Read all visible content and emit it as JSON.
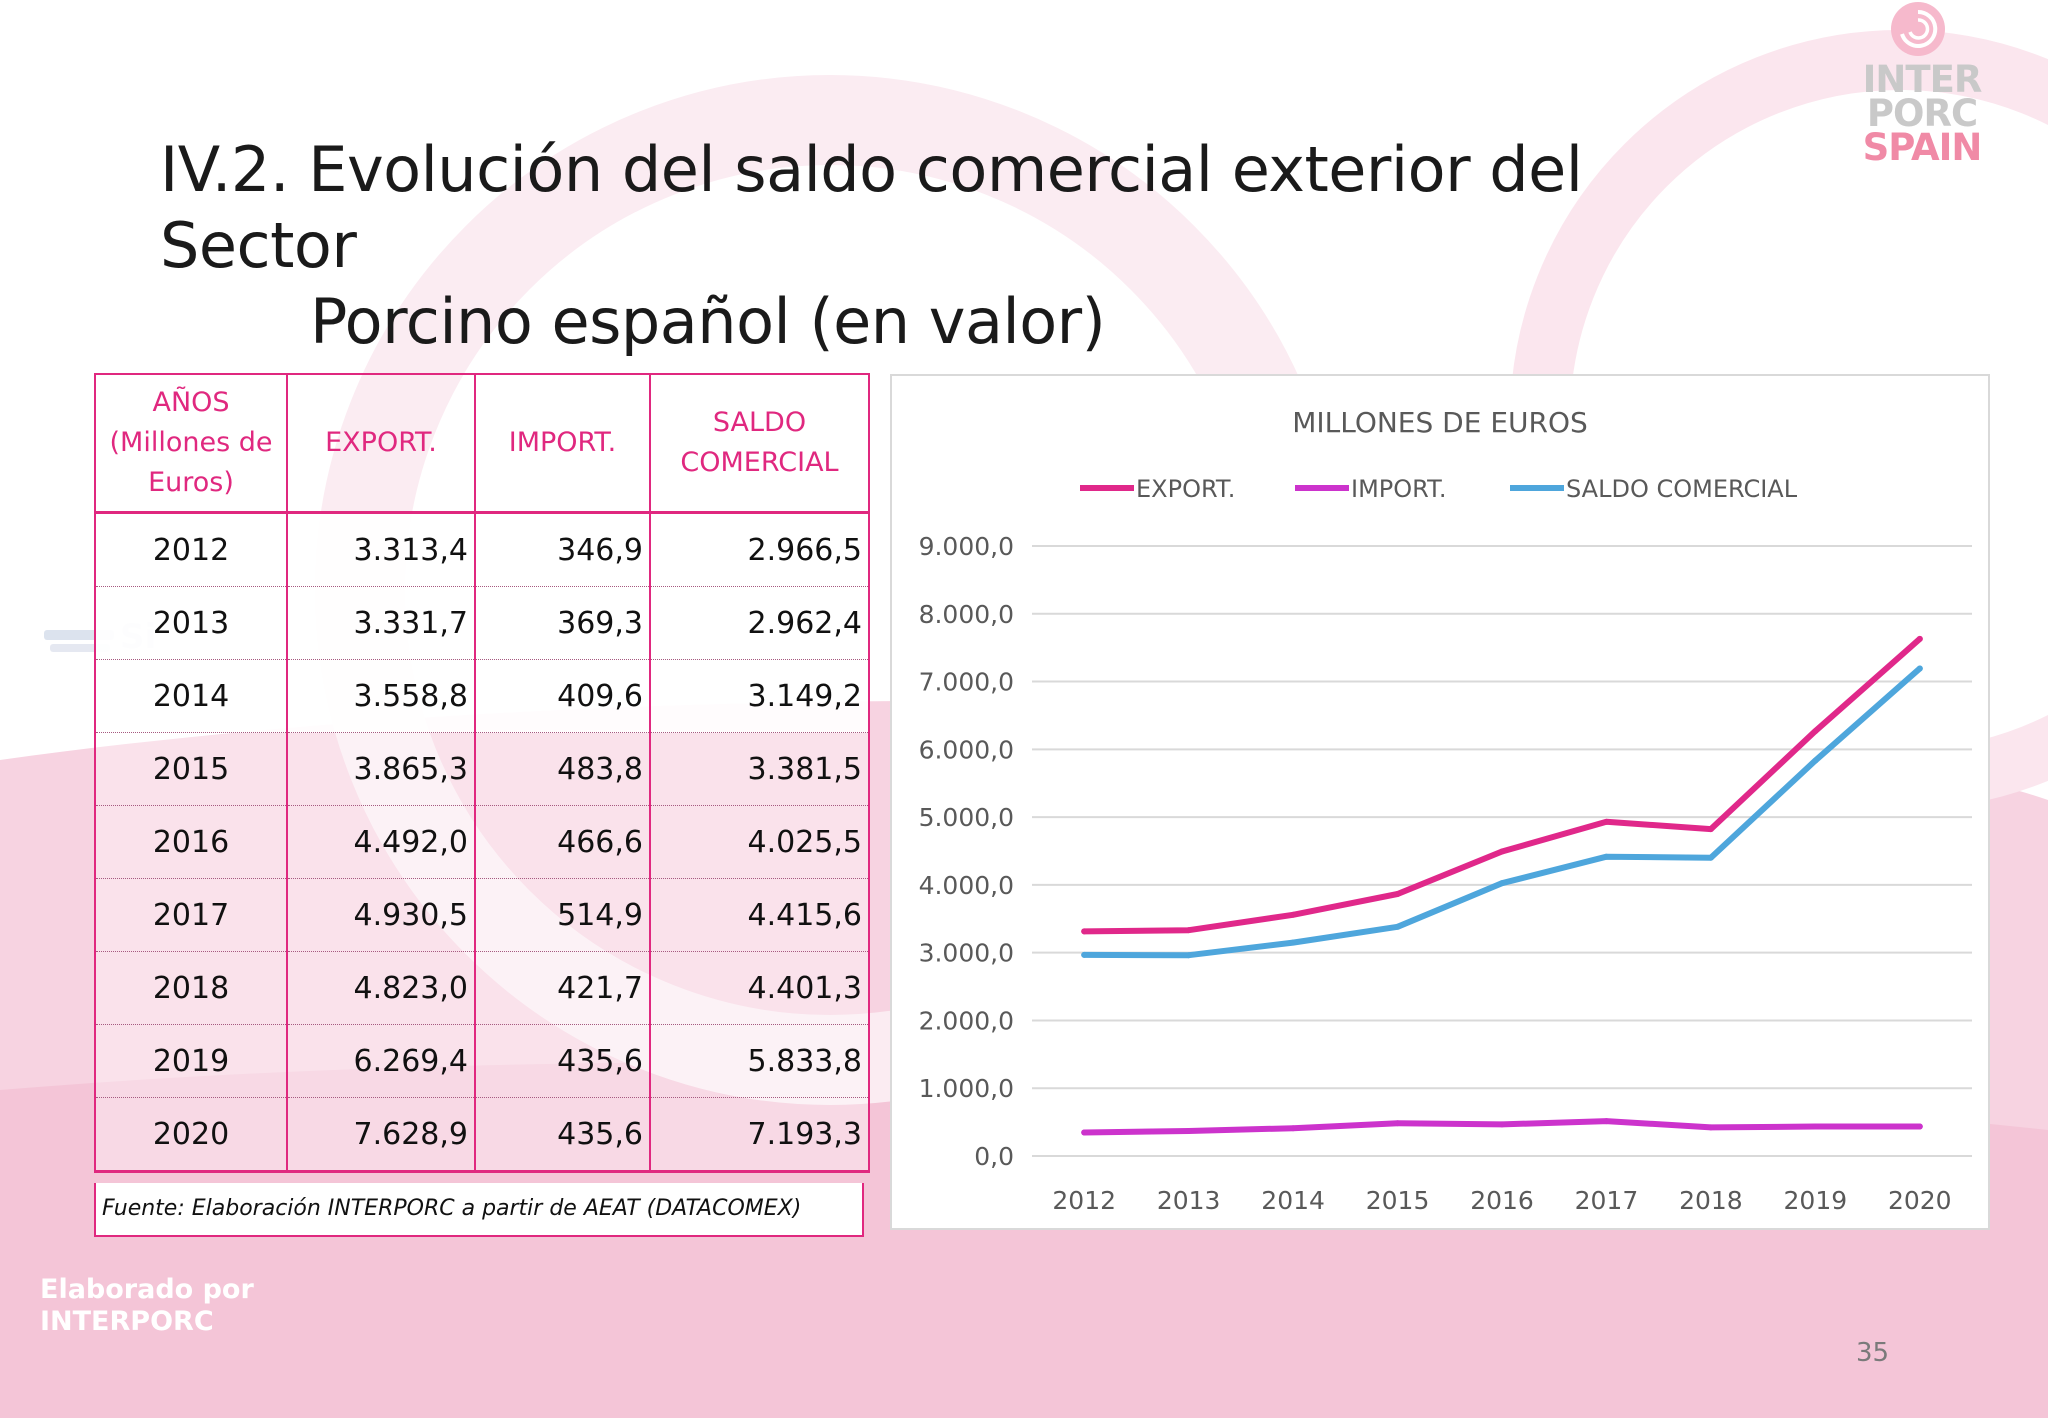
{
  "logo": {
    "line1": "INTER",
    "line2": "PORC",
    "line3": "SPAIN"
  },
  "title": {
    "line1": "IV.2. Evolución del saldo comercial exterior del Sector",
    "line2": "Porcino español (en valor)"
  },
  "table": {
    "headers": [
      "AÑOS (Millones de Euros)",
      "EXPORT.",
      "IMPORT.",
      "SALDO COMERCIAL"
    ],
    "rows": [
      [
        "2012",
        "3.313,4",
        "346,9",
        "2.966,5"
      ],
      [
        "2013",
        "3.331,7",
        "369,3",
        "2.962,4"
      ],
      [
        "2014",
        "3.558,8",
        "409,6",
        "3.149,2"
      ],
      [
        "2015",
        "3.865,3",
        "483,8",
        "3.381,5"
      ],
      [
        "2016",
        "4.492,0",
        "466,6",
        "4.025,5"
      ],
      [
        "2017",
        "4.930,5",
        "514,9",
        "4.415,6"
      ],
      [
        "2018",
        "4.823,0",
        "421,7",
        "4.401,3"
      ],
      [
        "2019",
        "6.269,4",
        "435,6",
        "5.833,8"
      ],
      [
        "2020",
        "7.628,9",
        "435,6",
        "7.193,3"
      ]
    ],
    "source": "Fuente: Elaboración INTERPORC a partir de AEAT (DATACOMEX)"
  },
  "chart_data": {
    "type": "line",
    "title": "MILLONES DE EUROS",
    "x": [
      "2012",
      "2013",
      "2014",
      "2015",
      "2016",
      "2017",
      "2018",
      "2019",
      "2020"
    ],
    "series": [
      {
        "name": "EXPORT.",
        "color": "#e0288a",
        "values": [
          3313.4,
          3331.7,
          3558.8,
          3865.3,
          4492.0,
          4930.5,
          4823.0,
          6269.4,
          7628.9
        ]
      },
      {
        "name": "IMPORT.",
        "color": "#cc33cc",
        "values": [
          346.9,
          369.3,
          409.6,
          483.8,
          466.6,
          514.9,
          421.7,
          435.6,
          435.6
        ]
      },
      {
        "name": "SALDO COMERCIAL",
        "color": "#4ea6dc",
        "values": [
          2966.5,
          2962.4,
          3149.2,
          3381.5,
          4025.5,
          4415.6,
          4401.3,
          5833.8,
          7193.3
        ]
      }
    ],
    "ylim": [
      0,
      9000
    ],
    "yticks": [
      "0,0",
      "1.000,0",
      "2.000,0",
      "3.000,0",
      "4.000,0",
      "5.000,0",
      "6.000,0",
      "7.000,0",
      "8.000,0",
      "9.000,0"
    ],
    "grid": true,
    "legend": "top"
  },
  "footer": {
    "credit_line1": "Elaborado por",
    "credit_line2": "INTERPORC",
    "page_number": "35"
  }
}
